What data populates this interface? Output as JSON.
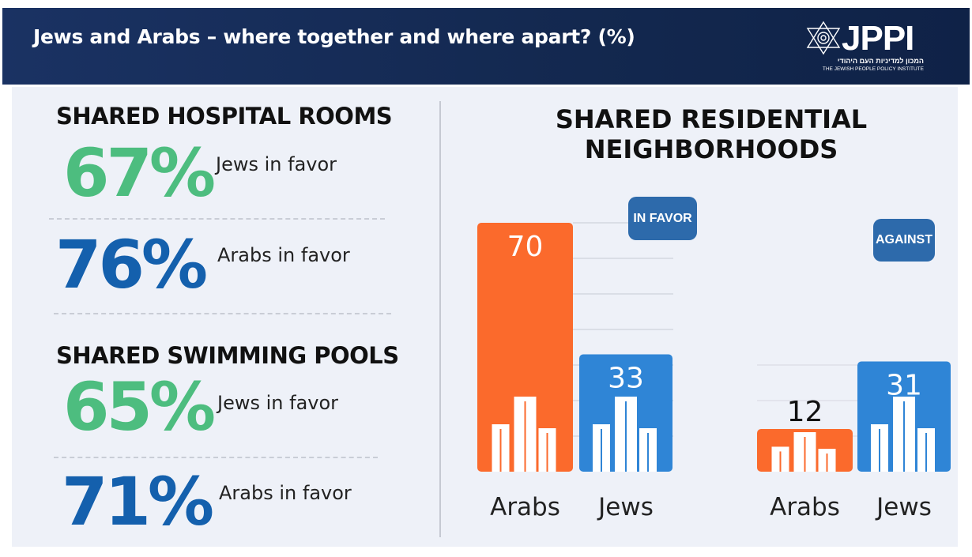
{
  "header": {
    "title": "Jews and Arabs – where together and where apart? (%)",
    "logo": {
      "name": "JPPI",
      "hebrew": "המכון למדיניות העם היהודי",
      "english": "THE JEWISH PEOPLE POLICY INSTITUTE"
    }
  },
  "left": {
    "hospital": {
      "title": "SHARED HOSPITAL ROOMS",
      "jews_value": "67%",
      "jews_label": "Jews in favor",
      "arabs_value": "76%",
      "arabs_label": "Arabs in favor"
    },
    "pools": {
      "title": "SHARED SWIMMING POOLS",
      "jews_value": "65%",
      "jews_label": "Jews in favor",
      "arabs_value": "71%",
      "arabs_label": "Arabs in favor"
    }
  },
  "colors": {
    "arabs": "#fb6a2c",
    "jews": "#2f85d6"
  },
  "chart_data": {
    "type": "bar",
    "title": "SHARED RESIDENTIAL NEIGHBORHOODS",
    "title_lines": [
      "SHARED RESIDENTIAL",
      "NEIGHBORHOODS"
    ],
    "categories": [
      "Arabs",
      "Jews"
    ],
    "groups": [
      {
        "name": "IN FAVOR",
        "values": [
          70,
          33
        ]
      },
      {
        "name": "AGAINST",
        "values": [
          12,
          31
        ]
      }
    ],
    "ylim": [
      0,
      70
    ],
    "grid": true
  }
}
